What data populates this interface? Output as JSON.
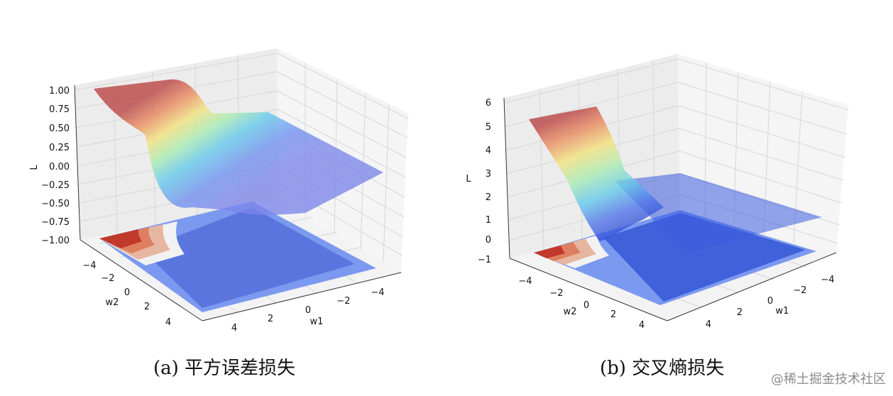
{
  "captions": {
    "a": "(a) 平方误差损失",
    "b": "(b) 交叉熵损失"
  },
  "watermark": "@稀土掘金技术社区",
  "colors": {
    "surface_colormap": "jet",
    "contour_warm": "#c0392b",
    "contour_cool": "#4f73d8",
    "pane": "#f2f2f2",
    "grid": "#d9d9d9"
  },
  "chart_data": [
    {
      "id": "a",
      "type": "surface3d",
      "title": "",
      "xlabel": "w1",
      "ylabel": "w2",
      "zlabel": "L",
      "xlim": [
        -5,
        5
      ],
      "ylim": [
        -5,
        5
      ],
      "zlim": [
        -1,
        1
      ],
      "x_ticks": [
        "4",
        "2",
        "0",
        "−2",
        "−4"
      ],
      "y_ticks": [
        "−4",
        "−2",
        "0",
        "2",
        "4"
      ],
      "z_ticks": [
        "1.00",
        "0.75",
        "0.50",
        "0.25",
        "0.00",
        "−0.25",
        "−0.50",
        "−0.75",
        "−1.00"
      ],
      "surface": "square error loss over (w1, w2): sigmoid step from about 1.0 down to about 0.0",
      "approx_range": [
        0.0,
        1.0
      ],
      "contour_projection": "filled contours on plane z = -1",
      "grid": true
    },
    {
      "id": "b",
      "type": "surface3d",
      "title": "",
      "xlabel": "w1",
      "ylabel": "w2",
      "zlabel": "L",
      "xlim": [
        -5,
        5
      ],
      "ylim": [
        -5,
        5
      ],
      "zlim": [
        -1,
        6
      ],
      "x_ticks": [
        "4",
        "2",
        "0",
        "−2",
        "−4"
      ],
      "y_ticks": [
        "−4",
        "−2",
        "0",
        "2",
        "4"
      ],
      "z_ticks": [
        "6",
        "5",
        "4",
        "3",
        "2",
        "1",
        "0",
        "−1"
      ],
      "surface": "cross entropy loss over (w1, w2): slope from about 5.0 down to about 0.0",
      "approx_range": [
        0.0,
        5.0
      ],
      "contour_projection": "filled contours on plane z = -1",
      "grid": true
    }
  ]
}
